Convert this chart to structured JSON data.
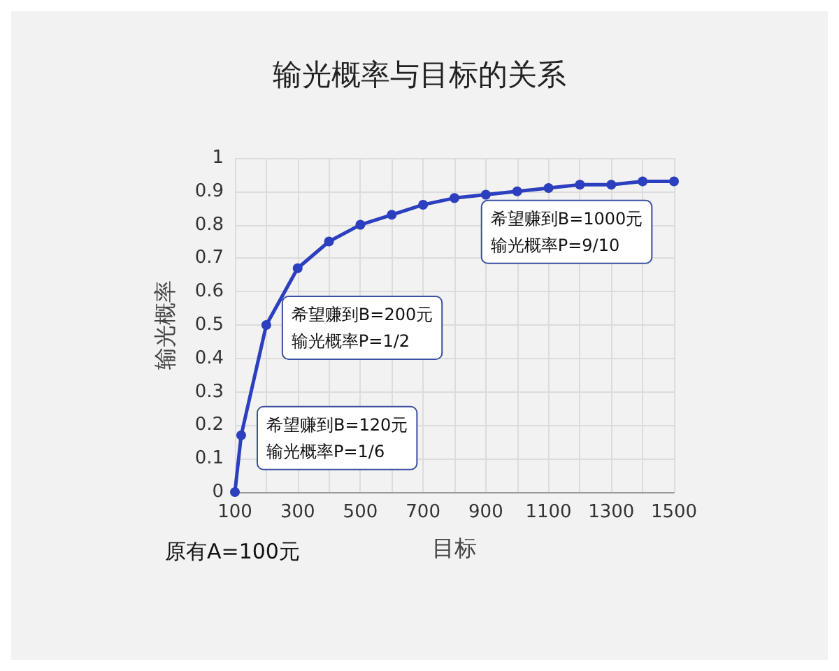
{
  "chart_data": {
    "type": "line",
    "title": "输光概率与目标的关系",
    "xlabel": "目标",
    "ylabel": "输光概率",
    "x": [
      100,
      120,
      200,
      300,
      400,
      500,
      600,
      700,
      800,
      900,
      1000,
      1100,
      1200,
      1300,
      1400,
      1500
    ],
    "series": [
      {
        "color": "#2b3fbf",
        "values": [
          0,
          0.17,
          0.5,
          0.67,
          0.75,
          0.8,
          0.83,
          0.86,
          0.88,
          0.89,
          0.9,
          0.91,
          0.92,
          0.92,
          0.93,
          0.93
        ]
      }
    ],
    "xlim": [
      100,
      1500
    ],
    "xticks": [
      100,
      {
        "value": 200,
        "label": null
      },
      300,
      {
        "value": 400,
        "label": null
      },
      500,
      {
        "value": 600,
        "label": null
      },
      700,
      {
        "value": 800,
        "label": null
      },
      900,
      {
        "value": 1000,
        "label": null
      },
      1100,
      {
        "value": 1200,
        "label": null
      },
      1300,
      {
        "value": 1400,
        "label": null
      },
      1500
    ],
    "ylim": [
      0,
      1
    ],
    "yticks": [
      0,
      0.1,
      0.2,
      0.3,
      0.4,
      0.5,
      0.6,
      0.7,
      0.8,
      0.9,
      1
    ],
    "grid": true,
    "marker": "circle",
    "line_style": "solid",
    "annotations": [
      {
        "text": "希望赚到B=120元",
        "x": 120,
        "y": 0.17
      },
      {
        "text": "输光概率P=1/6",
        "x": 120,
        "y": 0.17
      },
      {
        "text": "希望赚到B=200元",
        "x": 200,
        "y": 0.5
      },
      {
        "text": "输光概率P=1/2",
        "x": 200,
        "y": 0.5
      },
      {
        "text": "希望赚到B=1000元",
        "x": 1000,
        "y": 0.9
      },
      {
        "text": "输光概率P=9/10",
        "x": 1000,
        "y": 0.9
      },
      "原有A=100元"
    ]
  }
}
